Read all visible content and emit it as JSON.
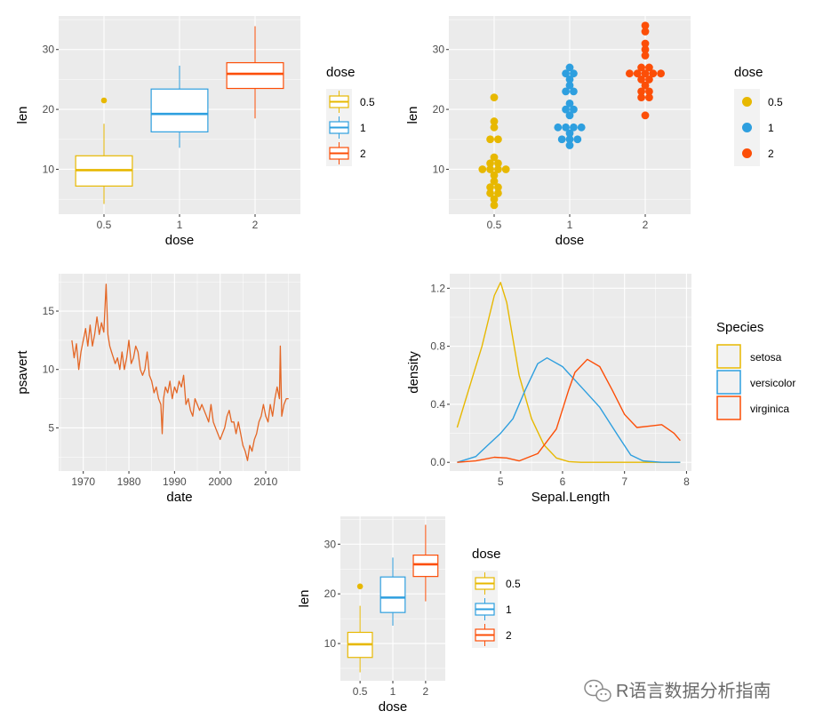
{
  "palette": {
    "c05": "#E7B800",
    "c1": "#2E9FDF",
    "c2": "#FC4E07",
    "line": "#E46726",
    "panel": "#EBEBEB",
    "grid": "#FFFFFF"
  },
  "watermark": {
    "text": "R语言数据分析指南",
    "icon": "wechat-icon"
  },
  "chart_data": [
    {
      "id": "box1",
      "type": "box",
      "xlabel": "dose",
      "ylabel": "len",
      "categories": [
        "0.5",
        "1",
        "2"
      ],
      "yticks": [
        10,
        20,
        30
      ],
      "ylim": [
        2.5,
        35.6
      ],
      "boxes": [
        {
          "cat": "0.5",
          "whislo": 4.2,
          "q1": 7.2,
          "med": 9.85,
          "q3": 12.25,
          "whishi": 17.6,
          "outliers": [
            21.5
          ]
        },
        {
          "cat": "1",
          "whislo": 13.6,
          "q1": 16.25,
          "med": 19.25,
          "q3": 23.4,
          "whishi": 27.3,
          "outliers": []
        },
        {
          "cat": "2",
          "whislo": 18.5,
          "q1": 23.5,
          "med": 25.95,
          "q3": 27.8,
          "whishi": 33.9,
          "outliers": []
        }
      ],
      "legend": {
        "title": "dose",
        "labels": [
          "0.5",
          "1",
          "2"
        ],
        "glyph": "box",
        "position": "right"
      }
    },
    {
      "id": "dot1",
      "type": "dotplot",
      "xlabel": "dose",
      "ylabel": "len",
      "categories": [
        "0.5",
        "1",
        "2"
      ],
      "yticks": [
        10,
        20,
        30
      ],
      "ylim": [
        2.5,
        35.6
      ],
      "values": {
        "0.5": [
          4.2,
          11.5,
          7.3,
          5.8,
          6.4,
          10.0,
          11.2,
          11.2,
          5.2,
          7.0,
          15.2,
          21.5,
          17.6,
          9.7,
          14.5,
          10.0,
          8.2,
          9.4,
          16.5,
          9.7
        ],
        "1": [
          16.5,
          16.5,
          15.2,
          17.3,
          22.5,
          17.3,
          13.6,
          14.5,
          18.8,
          15.5,
          19.7,
          23.3,
          23.6,
          26.4,
          20.0,
          25.2,
          25.8,
          21.2,
          14.5,
          27.3
        ],
        "2": [
          23.6,
          18.5,
          33.9,
          25.5,
          26.4,
          32.5,
          26.7,
          21.5,
          23.3,
          29.5,
          25.5,
          26.4,
          22.4,
          24.5,
          24.8,
          30.9,
          26.4,
          27.3,
          29.4,
          23.0
        ]
      },
      "legend": {
        "title": "dose",
        "labels": [
          "0.5",
          "1",
          "2"
        ],
        "glyph": "dot",
        "position": "right"
      }
    },
    {
      "id": "line1",
      "type": "line",
      "xlabel": "date",
      "ylabel": "psavert",
      "xticks": [
        1970,
        1980,
        1990,
        2000,
        2010
      ],
      "xlim": [
        1964.6,
        2017.6
      ],
      "yticks": [
        5,
        10,
        15
      ],
      "ylim": [
        1.3,
        18.2
      ],
      "series": [
        {
          "x": [
            1967.5,
            1968.0,
            1968.5,
            1969.0,
            1969.5,
            1970.0,
            1970.5,
            1971.0,
            1971.5,
            1972.0,
            1972.5,
            1973.0,
            1973.5,
            1974.0,
            1974.5,
            1975.0,
            1975.4,
            1975.8,
            1976.2,
            1976.6,
            1977.0,
            1977.5,
            1978.0,
            1978.5,
            1979.0,
            1979.5,
            1980.0,
            1980.5,
            1981.0,
            1981.5,
            1982.0,
            1982.5,
            1983.0,
            1983.5,
            1984.0,
            1984.5,
            1985.0,
            1985.5,
            1986.0,
            1986.5,
            1987.0,
            1987.3,
            1987.6,
            1988.0,
            1988.5,
            1989.0,
            1989.5,
            1990.0,
            1990.5,
            1991.0,
            1991.5,
            1992.0,
            1992.5,
            1993.0,
            1993.5,
            1994.0,
            1994.5,
            1995.0,
            1995.5,
            1996.0,
            1996.5,
            1997.0,
            1997.5,
            1998.0,
            1998.5,
            1999.0,
            1999.5,
            2000.0,
            2000.5,
            2001.0,
            2001.5,
            2002.0,
            2002.5,
            2003.0,
            2003.5,
            2004.0,
            2004.5,
            2005.0,
            2005.5,
            2006.0,
            2006.5,
            2007.0,
            2007.5,
            2008.0,
            2008.5,
            2009.0,
            2009.5,
            2010.0,
            2010.5,
            2011.0,
            2011.5,
            2012.0,
            2012.5,
            2013.0,
            2013.2,
            2013.5,
            2014.0,
            2014.5,
            2015.0
          ],
          "y": [
            12.5,
            11.0,
            12.2,
            10.0,
            11.5,
            12.5,
            13.5,
            12.0,
            13.8,
            12.0,
            13.0,
            14.5,
            13.0,
            14.0,
            13.2,
            17.3,
            13.0,
            12.0,
            11.5,
            11.0,
            10.5,
            11.0,
            10.0,
            11.5,
            10.0,
            11.0,
            12.5,
            10.5,
            11.0,
            12.0,
            11.5,
            10.0,
            9.5,
            10.0,
            11.5,
            9.5,
            9.0,
            8.0,
            8.5,
            7.5,
            7.0,
            4.5,
            7.5,
            8.5,
            8.0,
            9.0,
            7.5,
            8.5,
            8.0,
            9.0,
            8.5,
            9.5,
            7.0,
            7.5,
            6.5,
            6.0,
            7.5,
            7.0,
            6.5,
            7.0,
            6.5,
            6.0,
            5.5,
            7.0,
            5.5,
            5.0,
            4.5,
            4.0,
            4.5,
            5.0,
            6.0,
            6.5,
            5.5,
            5.5,
            4.5,
            5.5,
            4.5,
            3.5,
            3.0,
            2.2,
            3.5,
            3.0,
            4.0,
            4.5,
            5.5,
            6.0,
            7.0,
            6.0,
            5.5,
            7.0,
            6.0,
            7.5,
            8.5,
            7.5,
            12.0,
            6.0,
            7.0,
            7.5,
            7.5
          ]
        }
      ],
      "legend": null
    },
    {
      "id": "dens1",
      "type": "density",
      "xlabel": "Sepal.Length",
      "ylabel": "density",
      "xticks": [
        5,
        6,
        7,
        8
      ],
      "xlim": [
        4.18,
        8.08
      ],
      "yticks": [
        0.0,
        0.4,
        0.8,
        1.2
      ],
      "yticklabels": [
        "0.0",
        "0.4",
        "0.8",
        "1.2"
      ],
      "ylim": [
        -0.06,
        1.3
      ],
      "series": [
        {
          "name": "setosa",
          "x": [
            4.3,
            4.5,
            4.7,
            4.9,
            5.0,
            5.1,
            5.3,
            5.5,
            5.7,
            5.9,
            6.1,
            6.3,
            6.5,
            7.9
          ],
          "y": [
            0.24,
            0.52,
            0.8,
            1.15,
            1.24,
            1.1,
            0.6,
            0.3,
            0.12,
            0.03,
            0.005,
            0.0,
            0.0,
            0.0
          ]
        },
        {
          "name": "versicolor",
          "x": [
            4.3,
            4.6,
            4.8,
            5.0,
            5.2,
            5.4,
            5.6,
            5.75,
            6.0,
            6.3,
            6.6,
            6.9,
            7.1,
            7.3,
            7.6,
            7.9
          ],
          "y": [
            0.0,
            0.04,
            0.12,
            0.2,
            0.3,
            0.5,
            0.68,
            0.72,
            0.66,
            0.52,
            0.38,
            0.18,
            0.05,
            0.01,
            0.0,
            0.0
          ]
        },
        {
          "name": "virginica",
          "x": [
            4.3,
            4.6,
            4.9,
            5.1,
            5.3,
            5.6,
            5.9,
            6.1,
            6.2,
            6.4,
            6.6,
            6.8,
            7.0,
            7.2,
            7.4,
            7.6,
            7.8,
            7.9
          ],
          "y": [
            0.0,
            0.01,
            0.035,
            0.03,
            0.01,
            0.06,
            0.23,
            0.5,
            0.62,
            0.71,
            0.66,
            0.5,
            0.33,
            0.24,
            0.25,
            0.26,
            0.2,
            0.15
          ]
        }
      ],
      "legend": {
        "title": "Species",
        "labels": [
          "setosa",
          "versicolor",
          "virginica"
        ],
        "glyph": "fill-box",
        "position": "right"
      }
    },
    {
      "id": "box2",
      "type": "box",
      "xlabel": "dose",
      "ylabel": "len",
      "categories": [
        "0.5",
        "1",
        "2"
      ],
      "yticks": [
        10,
        20,
        30
      ],
      "ylim": [
        2.5,
        35.6
      ],
      "boxes": [
        {
          "cat": "0.5",
          "whislo": 4.2,
          "q1": 7.2,
          "med": 9.85,
          "q3": 12.25,
          "whishi": 17.6,
          "outliers": [
            21.5
          ]
        },
        {
          "cat": "1",
          "whislo": 13.6,
          "q1": 16.25,
          "med": 19.25,
          "q3": 23.4,
          "whishi": 27.3,
          "outliers": []
        },
        {
          "cat": "2",
          "whislo": 18.5,
          "q1": 23.5,
          "med": 25.95,
          "q3": 27.8,
          "whishi": 33.9,
          "outliers": []
        }
      ],
      "legend": {
        "title": "dose",
        "labels": [
          "0.5",
          "1",
          "2"
        ],
        "glyph": "box",
        "position": "right"
      }
    }
  ]
}
